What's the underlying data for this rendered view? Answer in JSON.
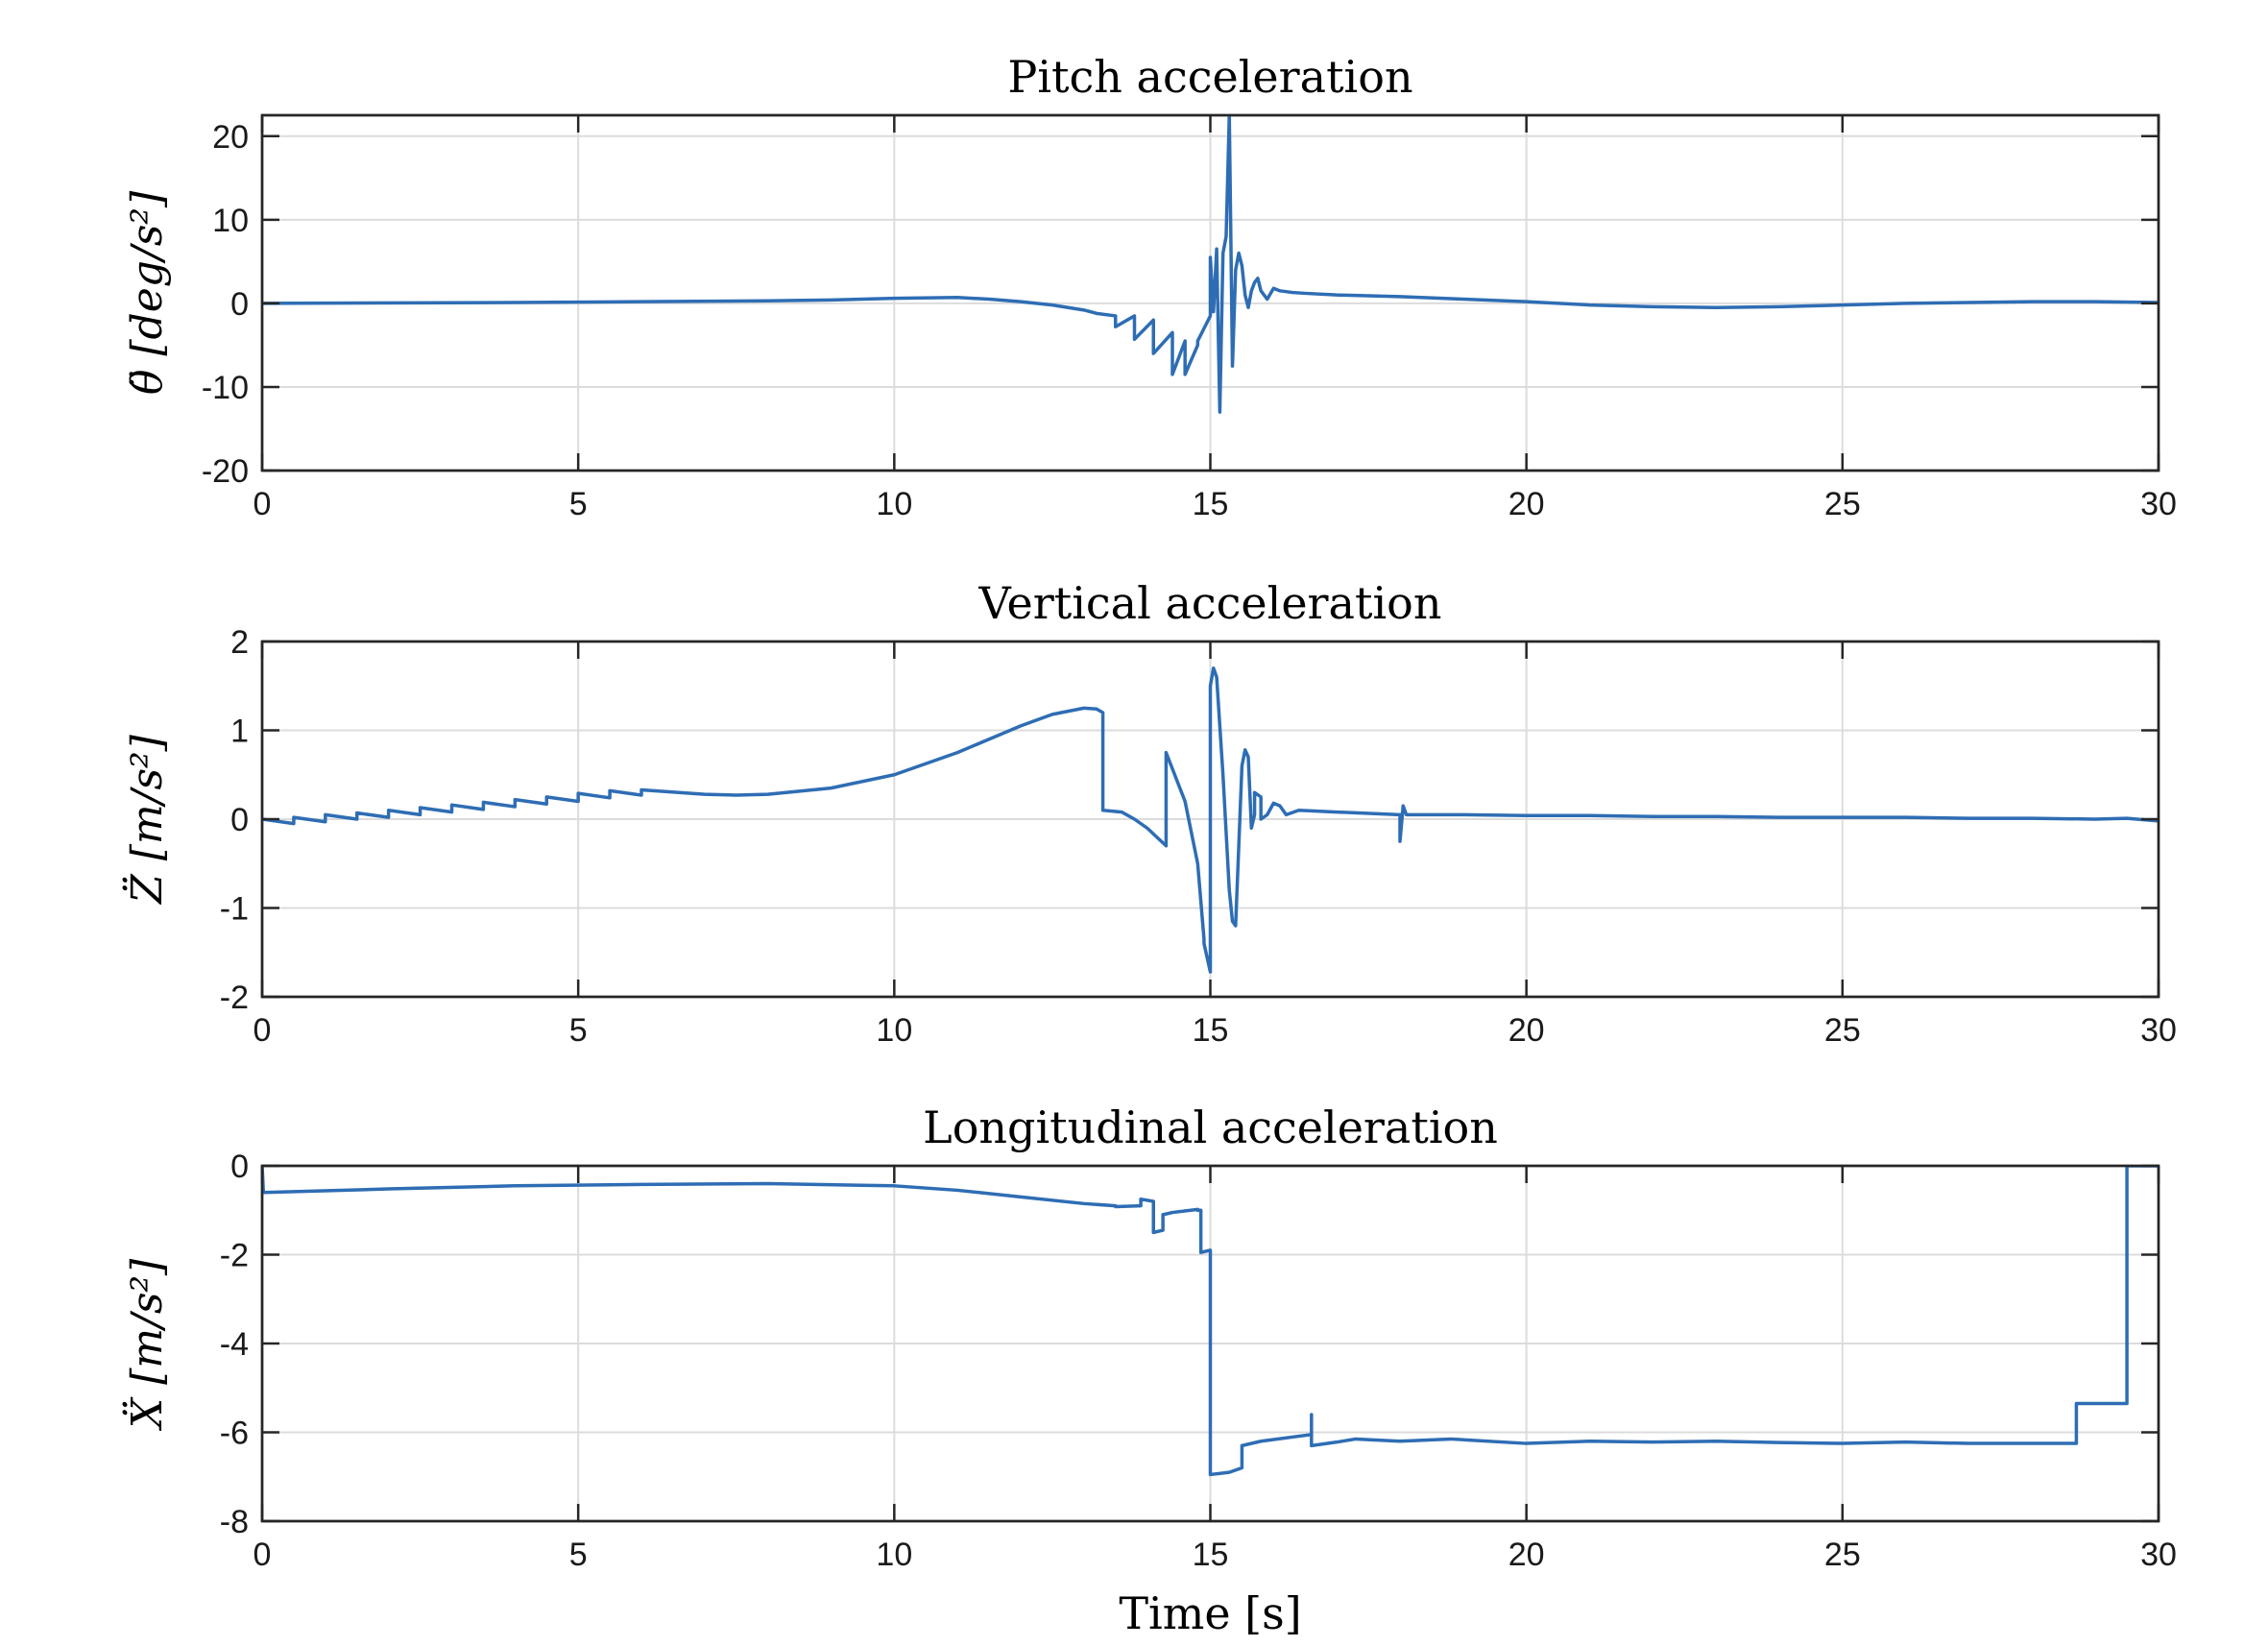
{
  "figure": {
    "xlabel": "Time [s]"
  },
  "colors": {
    "series": "#2e6db4",
    "axes": "#262626",
    "grid": "#dcdcdc"
  },
  "chart_data": [
    {
      "type": "line",
      "title": "Pitch acceleration",
      "xlabel": "",
      "ylabel": "θ̈ [deg/s²]",
      "xlim": [
        0,
        30
      ],
      "ylim": [
        -20,
        22.5
      ],
      "xticks": [
        0,
        5,
        10,
        15,
        20,
        25,
        30
      ],
      "yticks": [
        -20,
        -10,
        0,
        10,
        20
      ],
      "grid": true,
      "series": [
        {
          "x": [
            0,
            4,
            6,
            8,
            9,
            10,
            11,
            11.5,
            12,
            12.5,
            13,
            13.2,
            13.5,
            13.5,
            13.8,
            13.8,
            14.1,
            14.1,
            14.4,
            14.4,
            14.6,
            14.6,
            14.8,
            14.8,
            14.9,
            15.0,
            15.0,
            15.05,
            15.1,
            15.15,
            15.2,
            15.25,
            15.3,
            15.35,
            15.4,
            15.45,
            15.5,
            15.55,
            15.6,
            15.65,
            15.7,
            15.75,
            15.8,
            15.9,
            16.0,
            16.1,
            16.3,
            16.5,
            17,
            18,
            19,
            20,
            21,
            22,
            23,
            24,
            25,
            26,
            27,
            28,
            29,
            30
          ],
          "y": [
            0,
            0.1,
            0.2,
            0.3,
            0.4,
            0.6,
            0.7,
            0.5,
            0.2,
            -0.2,
            -0.8,
            -1.2,
            -1.5,
            -2.8,
            -1.5,
            -4.3,
            -2.0,
            -6.0,
            -3.5,
            -8.5,
            -4.5,
            -8.5,
            -5.0,
            -4.5,
            -3.0,
            -1.5,
            5.5,
            -1.0,
            6.5,
            -13.0,
            6.0,
            8.0,
            22.5,
            -7.5,
            4.0,
            6.0,
            4.5,
            1.0,
            -0.5,
            1.5,
            2.5,
            3.0,
            1.5,
            0.5,
            1.8,
            1.5,
            1.3,
            1.2,
            1.0,
            0.8,
            0.5,
            0.2,
            -0.2,
            -0.4,
            -0.5,
            -0.4,
            -0.2,
            0.0,
            0.1,
            0.2,
            0.2,
            0.1
          ]
        }
      ]
    },
    {
      "type": "line",
      "title": "Vertical acceleration",
      "xlabel": "",
      "ylabel": "Z̈ [m/s²]",
      "xlim": [
        0,
        30
      ],
      "ylim": [
        -2,
        2
      ],
      "xticks": [
        0,
        5,
        10,
        15,
        20,
        25,
        30
      ],
      "yticks": [
        -2,
        -1,
        0,
        1,
        2
      ],
      "grid": true,
      "series": [
        {
          "x": [
            0,
            0.5,
            0.5,
            1.0,
            1.0,
            1.5,
            1.5,
            2.0,
            2.0,
            2.5,
            2.5,
            3.0,
            3.0,
            3.5,
            3.5,
            4.0,
            4.0,
            4.5,
            4.5,
            5.0,
            5.0,
            5.5,
            5.5,
            6.0,
            6.0,
            7.0,
            7.5,
            8,
            9,
            10,
            11,
            12,
            12.5,
            13.0,
            13.2,
            13.3,
            13.3,
            13.6,
            13.8,
            14.0,
            14.3,
            14.3,
            14.6,
            14.8,
            14.9,
            14.9,
            15.0,
            15.0,
            15.05,
            15.1,
            15.2,
            15.3,
            15.35,
            15.4,
            15.45,
            15.5,
            15.55,
            15.6,
            15.65,
            15.7,
            15.7,
            15.8,
            15.8,
            15.9,
            16.0,
            16.1,
            16.2,
            16.4,
            17,
            18,
            18.0,
            18.05,
            18.1,
            19,
            20,
            21,
            22,
            23,
            24,
            25,
            26,
            27,
            28,
            29,
            29.5,
            30
          ],
          "y": [
            0,
            -0.05,
            0.02,
            -0.03,
            0.05,
            0.0,
            0.07,
            0.02,
            0.1,
            0.05,
            0.13,
            0.08,
            0.16,
            0.11,
            0.19,
            0.14,
            0.22,
            0.17,
            0.25,
            0.2,
            0.29,
            0.24,
            0.32,
            0.27,
            0.33,
            0.28,
            0.27,
            0.28,
            0.35,
            0.5,
            0.75,
            1.05,
            1.18,
            1.25,
            1.24,
            1.2,
            0.1,
            0.08,
            0.0,
            -0.1,
            -0.3,
            0.75,
            0.2,
            -0.5,
            -1.35,
            -1.4,
            -1.72,
            1.5,
            1.7,
            1.6,
            0.5,
            -0.8,
            -1.15,
            -1.2,
            -0.3,
            0.6,
            0.78,
            0.7,
            -0.1,
            0.05,
            0.3,
            0.25,
            0.0,
            0.05,
            0.18,
            0.15,
            0.05,
            0.1,
            0.08,
            0.05,
            -0.25,
            0.15,
            0.05,
            0.05,
            0.04,
            0.04,
            0.03,
            0.03,
            0.02,
            0.02,
            0.02,
            0.01,
            0.01,
            0.0,
            0.01,
            -0.02
          ]
        }
      ]
    },
    {
      "type": "line",
      "title": "Longitudinal acceleration",
      "xlabel": "Time [s]",
      "ylabel": "Ẍ [m/s²]",
      "xlim": [
        0,
        30
      ],
      "ylim": [
        -8,
        0
      ],
      "xticks": [
        0,
        5,
        10,
        15,
        20,
        25,
        30
      ],
      "yticks": [
        -8,
        -6,
        -4,
        -2,
        0
      ],
      "grid": true,
      "series": [
        {
          "x": [
            0,
            0.02,
            0.5,
            2,
            4,
            6,
            8,
            10,
            11,
            12,
            13,
            13.5,
            13.5,
            13.9,
            13.9,
            14.1,
            14.1,
            14.25,
            14.25,
            14.4,
            14.4,
            14.8,
            14.8,
            14.85,
            14.85,
            15.0,
            15.0,
            15.3,
            15.5,
            15.5,
            15.8,
            16.6,
            16.6,
            16.6,
            16.6,
            17.0,
            17.3,
            18.0,
            18.8,
            20,
            21,
            22,
            23,
            24,
            25,
            26,
            27,
            28,
            28.7,
            28.7,
            29.5,
            29.5,
            30
          ],
          "y": [
            0,
            -0.6,
            -0.58,
            -0.52,
            -0.45,
            -0.42,
            -0.4,
            -0.45,
            -0.55,
            -0.7,
            -0.85,
            -0.9,
            -0.92,
            -0.9,
            -0.75,
            -0.8,
            -1.5,
            -1.45,
            -1.1,
            -1.05,
            -1.05,
            -0.98,
            -1.0,
            -1.0,
            -1.95,
            -1.9,
            -6.95,
            -6.9,
            -6.8,
            -6.3,
            -6.2,
            -6.05,
            -5.6,
            -6.3,
            -6.3,
            -6.22,
            -6.15,
            -6.2,
            -6.15,
            -6.25,
            -6.2,
            -6.22,
            -6.2,
            -6.23,
            -6.25,
            -6.22,
            -6.25,
            -6.25,
            -6.25,
            -5.35,
            -5.35,
            0,
            0
          ]
        }
      ]
    }
  ]
}
